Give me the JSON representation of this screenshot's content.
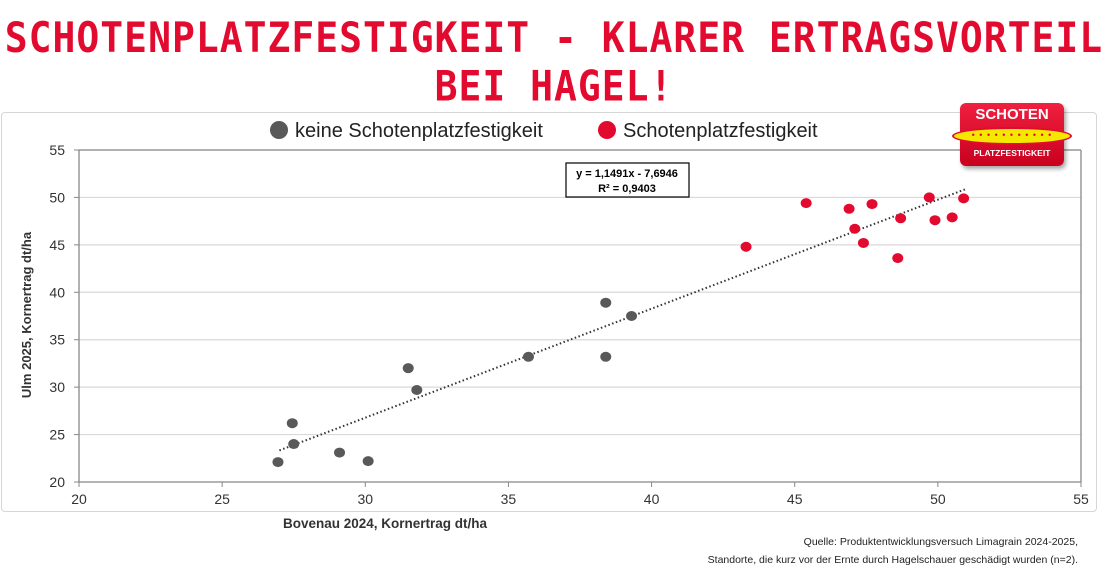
{
  "title": "SCHOTENPLATZFESTIGKEIT - KLARER ERTRAGSVORTEIL BEI HAGEL!",
  "logo": {
    "top": "SCHOTEN",
    "bottom": "PLATZFESTIGKEIT"
  },
  "source": {
    "line1": "Quelle: Produktentwicklungsversuch Limagrain 2024-2025,",
    "line2": "Standorte, die kurz vor der Ernte durch Hagelschauer geschädigt wurden (n=2)."
  },
  "chart_data": {
    "type": "scatter",
    "xlabel": "Bovenau 2024, Kornertrag dt/ha",
    "ylabel": "Ulm 2025, Kornertrag dt/ha",
    "xlim": [
      20,
      55
    ],
    "ylim": [
      20,
      55
    ],
    "xticks": [
      "20",
      "25",
      "30",
      "35",
      "40",
      "45",
      "50",
      "55"
    ],
    "yticks": [
      "20",
      "25",
      "30",
      "35",
      "40",
      "45",
      "50",
      "55"
    ],
    "grid": "horizontal",
    "legend_position": "top",
    "trendline": {
      "type": "linear",
      "slope": 1.1491,
      "intercept": -7.6946,
      "x_range": [
        27,
        51
      ],
      "equation": "y = 1,1491x - 7,6946",
      "r2": "R² = 0,9403"
    },
    "series": [
      {
        "name": "keine Schotenplatzfestigkeit",
        "color": "#595959",
        "points": [
          [
            26.95,
            22.1
          ],
          [
            27.45,
            26.2
          ],
          [
            27.5,
            24.0
          ],
          [
            29.1,
            23.1
          ],
          [
            30.1,
            22.2
          ],
          [
            31.5,
            32.0
          ],
          [
            31.8,
            29.7
          ],
          [
            35.7,
            33.2
          ],
          [
            38.4,
            38.9
          ],
          [
            38.4,
            33.2
          ],
          [
            39.3,
            37.5
          ]
        ]
      },
      {
        "name": "Schotenplatzfestigkeit",
        "color": "#e30a2f",
        "points": [
          [
            43.3,
            44.8
          ],
          [
            45.4,
            49.4
          ],
          [
            46.9,
            48.8
          ],
          [
            47.1,
            46.7
          ],
          [
            47.4,
            45.2
          ],
          [
            47.7,
            49.3
          ],
          [
            48.6,
            43.6
          ],
          [
            48.7,
            47.8
          ],
          [
            49.7,
            50.0
          ],
          [
            49.9,
            47.6
          ],
          [
            50.5,
            47.9
          ],
          [
            50.9,
            49.9
          ]
        ]
      }
    ]
  }
}
